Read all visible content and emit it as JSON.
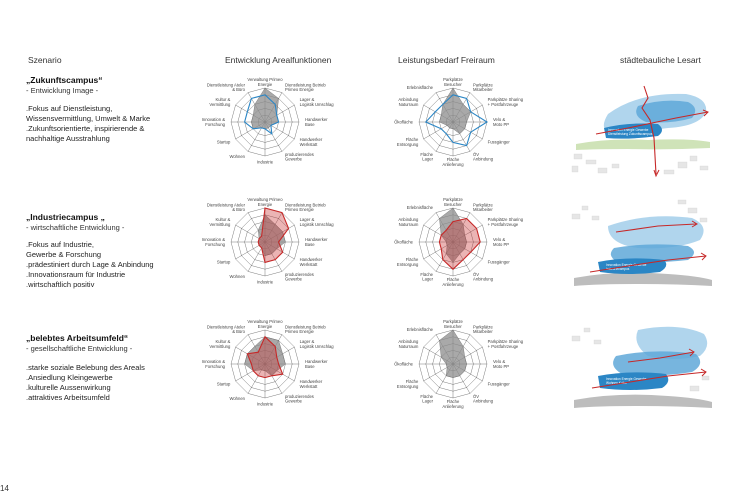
{
  "headers": {
    "scenario": "Szenario",
    "functions": "Entwicklung Arealfunktionen",
    "freespace": "Leistungsbedarf Freiraum",
    "urban": "städtebauliche Lesart"
  },
  "page_number": "14",
  "colors": {
    "blue": "#2b86c5",
    "red": "#c62828",
    "grey_fill": "#8c8c8c"
  },
  "scenarios": [
    {
      "title": "„Zukunftscampus“",
      "subtitle": "- Entwicklung Image -",
      "bullets": [
        ".Fokus auf Dienstleistung,",
        "Wissensvermittlung, Umwelt & Marke",
        ".Zukunftsorientierte, inspirierende &",
        "nachhaltige Ausstrahlung"
      ],
      "accent": "blue",
      "urban_labels": [
        "Innovation Energie Gewerbe",
        "Dienstleistung Zukunftscampus"
      ]
    },
    {
      "title": "„Industriecampus „",
      "subtitle": "- wirtschaftliche Entwicklung -",
      "bullets": [
        ".Fokus auf Industrie,",
        " Gewerbe & Forschung",
        ".prädestiniert durch Lage & Anbindung",
        ".Innovationsraum für Industrie",
        ".wirtschaftlich positiv"
      ],
      "accent": "red",
      "urban_labels": [
        "Innovation Energie Gewerbe",
        "Industriecampus"
      ]
    },
    {
      "title": "„belebtes Arbeitsumfeld“",
      "subtitle": "- gesellschaftliche Entwicklung -",
      "bullets": [
        ".starke soziale Belebung des Areals",
        ".Ansiedlung Kleingewerbe",
        ".kulturelle Aussenwirkung",
        ".attraktives Arbeitsumfeld"
      ],
      "accent": "red",
      "urban_labels": [
        "Innovation Energie Gewerbe",
        "Wohnen Kultur"
      ]
    }
  ],
  "functions_axes": [
    "Verwaltung Primeo Energie",
    "Dienstleistung Betrieb Primeo Energie",
    "Lager & Logistik Umschlag",
    "Handwerker Base",
    "Handwerker Werkstatt",
    "produzierendes Gewerbe",
    "Industrie",
    "Wohnen",
    "Startup",
    "Innovation & Forschung",
    "Kultur & Vermittlung",
    "Dienstleistung Ateler & Büro"
  ],
  "freespace_axes": [
    "Parkplätze Besucher",
    "Parkplätze Mitarbeiter",
    "Parkplätze Sharing + Postfahrzeuge",
    "Velo & Moto PP",
    "Fussgänger",
    "ÖV Anbindung",
    "Fläche Anlieferung",
    "Fläche Lager",
    "Fläche Entsorgung",
    "Ökofläche",
    "Anbindung Naturraum",
    "Erlebnisfläche"
  ],
  "chart_data": [
    {
      "type": "radar",
      "title": "Entwicklung Arealfunktionen",
      "categories": [
        "Verwaltung Primeo Energie",
        "Dienstleistung Betrieb Primeo Energie",
        "Lager & Logistik Umschlag",
        "Handwerker Base",
        "Handwerker Werkstatt",
        "produzierendes Gewerbe",
        "Industrie",
        "Wohnen",
        "Startup",
        "Innovation & Forschung",
        "Kultur & Vermittlung",
        "Dienstleistung Ateler & Büro"
      ],
      "range": [
        0,
        5
      ],
      "rows": [
        {
          "baseline": [
            5,
            4,
            2,
            2,
            1,
            1,
            1,
            1,
            2,
            2,
            2,
            3
          ],
          "scenario": [
            4,
            3,
            2,
            2,
            1,
            2,
            1,
            1,
            2,
            3,
            3,
            4
          ]
        },
        {
          "baseline": [
            4,
            3,
            3,
            3,
            2,
            2,
            2,
            1,
            1,
            1,
            1,
            2
          ],
          "scenario": [
            5,
            5,
            4,
            2,
            3,
            3,
            3,
            1,
            1,
            1,
            1,
            1
          ]
        },
        {
          "baseline": [
            4,
            4,
            3,
            3,
            2,
            2,
            1,
            1,
            2,
            3,
            3,
            3
          ],
          "scenario": [
            4,
            3,
            2,
            2,
            3,
            2,
            2,
            2,
            2,
            2,
            3,
            2
          ]
        }
      ]
    },
    {
      "type": "radar",
      "title": "Leistungsbedarf Freiraum",
      "categories": [
        "Parkplätze Besucher",
        "Parkplätze Mitarbeiter",
        "Parkplätze Sharing + Postfahrzeuge",
        "Velo & Moto PP",
        "Fussgänger",
        "ÖV Anbindung",
        "Fläche Anlieferung",
        "Fläche Lager",
        "Fläche Entsorgung",
        "Ökofläche",
        "Anbindung Naturraum",
        "Erlebnisfläche"
      ],
      "range": [
        0,
        5
      ],
      "rows": [
        {
          "baseline": [
            5,
            3,
            3,
            2,
            2,
            2,
            1,
            1,
            1,
            2,
            2,
            3
          ],
          "scenario": [
            4,
            4,
            3,
            5,
            3,
            4,
            3,
            2,
            2,
            4,
            3,
            3
          ]
        },
        {
          "baseline": [
            5,
            3,
            2,
            2,
            2,
            2,
            3,
            2,
            1,
            1,
            2,
            4
          ],
          "scenario": [
            3,
            4,
            4,
            4,
            3,
            3,
            4,
            3,
            2,
            2,
            2,
            2
          ]
        },
        {
          "baseline": [
            5,
            3,
            2,
            2,
            2,
            2,
            2,
            2,
            1,
            1,
            2,
            4
          ],
          "scenario": null
        }
      ]
    }
  ]
}
